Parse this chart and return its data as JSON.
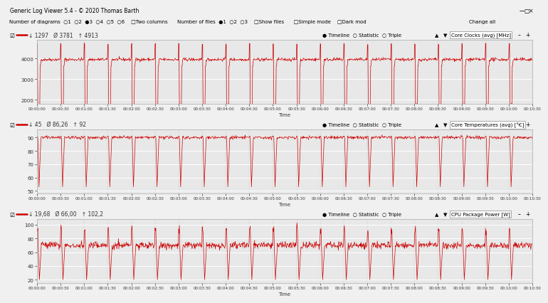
{
  "title": "Generic Log Viewer 5.4 - © 2020 Thomas Barth",
  "panel1": {
    "label": "Core Clocks (avg) [MHz]",
    "stats_min": "1297",
    "stats_avg": "3781",
    "stats_max": "4913",
    "ymin": 1800,
    "ymax": 4900,
    "yticks": [
      2000,
      3000,
      4000
    ],
    "baseline": 3950,
    "spike_down_val": 1750,
    "spike_up_val": 4700,
    "color": "#cc0000"
  },
  "panel2": {
    "label": "Core Temperatures (avg) [°C]",
    "stats_min": "45",
    "stats_avg": "86,26",
    "stats_max": "92",
    "ymin": 48,
    "ymax": 96,
    "yticks": [
      50,
      60,
      70,
      80,
      90
    ],
    "baseline": 90,
    "spike_down_val": 53,
    "color": "#cc0000"
  },
  "panel3": {
    "label": "CPU Package Power [W]",
    "stats_min": "19,68",
    "stats_avg": "66,00",
    "stats_max": "102,2",
    "ymin": 15,
    "ymax": 108,
    "yticks": [
      20,
      40,
      60,
      80,
      100
    ],
    "baseline": 70,
    "spike_down_val": 20,
    "spike_up_val": 100,
    "color": "#cc0000"
  },
  "bg_color": "#f0f0f0",
  "plot_bg": "#e8e8e8",
  "header_bg": "#e0ddd8",
  "toolbar_bg": "#f0f0f0",
  "titlebar_bg": "#d0d0d0",
  "time_labels": [
    "00:00:00",
    "00:00:30",
    "00:01:00",
    "00:01:30",
    "00:02:00",
    "00:02:30",
    "00:03:00",
    "00:03:30",
    "00:04:00",
    "00:04:30",
    "00:05:00",
    "00:05:30",
    "00:06:00",
    "00:06:30",
    "00:07:00",
    "00:07:30",
    "00:08:00",
    "00:08:30",
    "00:09:00",
    "00:09:30",
    "00:10:00",
    "00:10:30"
  ],
  "n_points": 1260,
  "n_cycles": 21,
  "duration_s": 630
}
